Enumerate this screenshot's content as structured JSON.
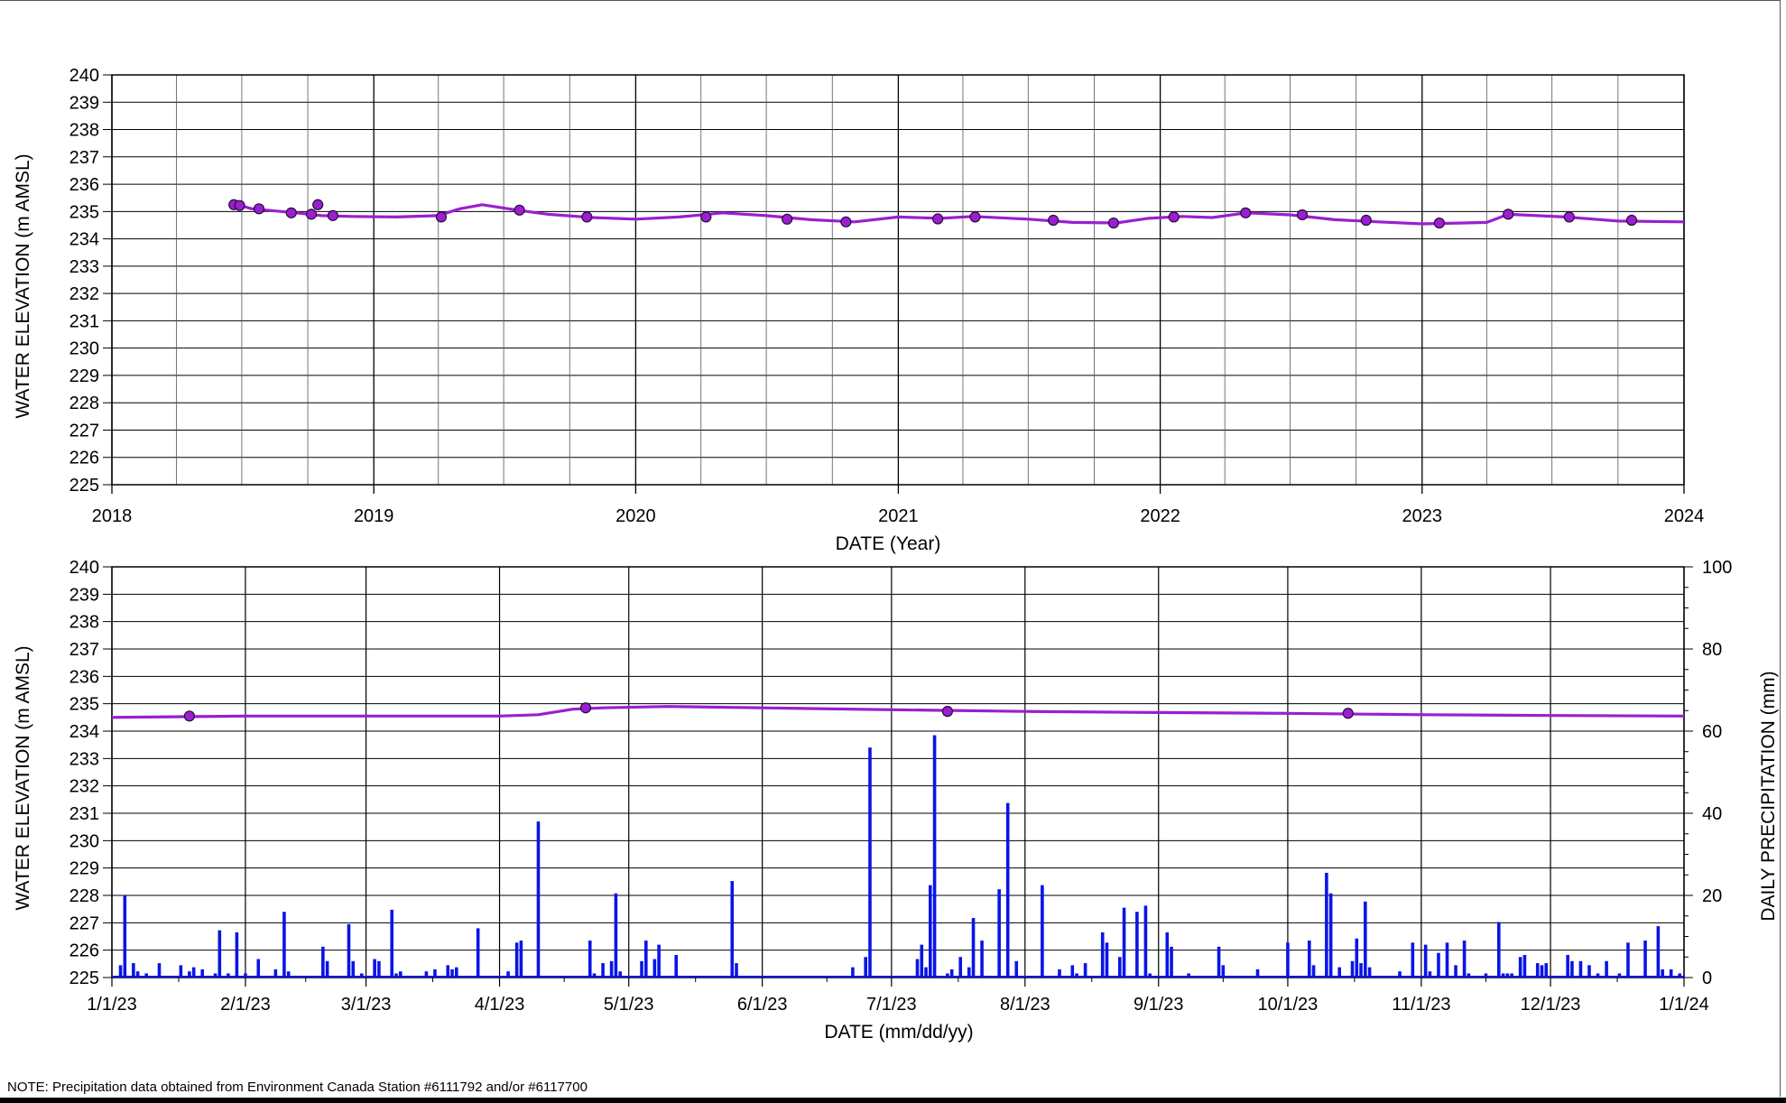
{
  "note": "NOTE: Precipitation data obtained from Environment Canada Station #6111792 and/or #6117700",
  "colors": {
    "water_line": "#9a1fd0",
    "marker": "#9a1fd0",
    "precip_bar": "#0a14e8",
    "grid": "#000000"
  },
  "chart_data": [
    {
      "type": "line",
      "ylabel": "WATER ELEVATION (m AMSL)",
      "xlabel": "DATE (Year)",
      "ylim": [
        225,
        240
      ],
      "xlim": [
        "2018-01-01",
        "2024-01-01"
      ],
      "x_ticks": [
        "2018",
        "2019",
        "2020",
        "2021",
        "2022",
        "2023",
        "2024"
      ],
      "y_ticks": [
        225,
        226,
        227,
        228,
        229,
        230,
        231,
        232,
        233,
        234,
        235,
        236,
        237,
        238,
        239,
        240
      ],
      "grid": true,
      "series": [
        {
          "kind": "line",
          "points": [
            [
              "2018-06-25",
              235.25
            ],
            [
              "2018-07-15",
              235.1
            ],
            [
              "2018-09-15",
              234.95
            ],
            [
              "2018-10-20",
              234.85
            ],
            [
              "2018-12-01",
              234.82
            ],
            [
              "2019-02-01",
              234.8
            ],
            [
              "2019-04-01",
              234.85
            ],
            [
              "2019-05-01",
              235.1
            ],
            [
              "2019-06-01",
              235.25
            ],
            [
              "2019-07-20",
              235.05
            ],
            [
              "2019-09-01",
              234.9
            ],
            [
              "2019-11-01",
              234.78
            ],
            [
              "2020-01-01",
              234.72
            ],
            [
              "2020-03-01",
              234.8
            ],
            [
              "2020-05-01",
              234.95
            ],
            [
              "2020-07-01",
              234.85
            ],
            [
              "2020-09-01",
              234.7
            ],
            [
              "2020-11-01",
              234.62
            ],
            [
              "2021-01-01",
              234.8
            ],
            [
              "2021-03-01",
              234.75
            ],
            [
              "2021-04-15",
              234.82
            ],
            [
              "2021-07-01",
              234.72
            ],
            [
              "2021-09-01",
              234.6
            ],
            [
              "2021-11-01",
              234.58
            ],
            [
              "2021-12-15",
              234.75
            ],
            [
              "2022-02-01",
              234.82
            ],
            [
              "2022-03-15",
              234.78
            ],
            [
              "2022-05-01",
              234.95
            ],
            [
              "2022-07-01",
              234.88
            ],
            [
              "2022-09-01",
              234.7
            ],
            [
              "2022-11-01",
              234.62
            ],
            [
              "2023-01-01",
              234.55
            ],
            [
              "2023-03-01",
              234.58
            ],
            [
              "2023-04-01",
              234.6
            ],
            [
              "2023-05-01",
              234.9
            ],
            [
              "2023-07-20",
              234.8
            ],
            [
              "2023-10-01",
              234.65
            ],
            [
              "2024-01-01",
              234.62
            ]
          ]
        },
        {
          "kind": "markers",
          "points": [
            [
              "2018-06-20",
              235.25
            ],
            [
              "2018-06-28",
              235.22
            ],
            [
              "2018-07-25",
              235.1
            ],
            [
              "2018-09-08",
              234.95
            ],
            [
              "2018-10-06",
              234.9
            ],
            [
              "2018-10-15",
              235.25
            ],
            [
              "2018-11-05",
              234.85
            ],
            [
              "2019-04-05",
              234.8
            ],
            [
              "2019-07-23",
              235.05
            ],
            [
              "2019-10-25",
              234.8
            ],
            [
              "2020-04-08",
              234.8
            ],
            [
              "2020-07-30",
              234.72
            ],
            [
              "2020-10-20",
              234.62
            ],
            [
              "2021-02-25",
              234.73
            ],
            [
              "2021-04-18",
              234.8
            ],
            [
              "2021-08-05",
              234.68
            ],
            [
              "2021-10-28",
              234.58
            ],
            [
              "2022-01-20",
              234.8
            ],
            [
              "2022-04-30",
              234.95
            ],
            [
              "2022-07-18",
              234.88
            ],
            [
              "2022-10-15",
              234.68
            ],
            [
              "2023-01-25",
              234.58
            ],
            [
              "2023-05-01",
              234.9
            ],
            [
              "2023-07-25",
              234.8
            ],
            [
              "2023-10-20",
              234.68
            ]
          ]
        }
      ]
    },
    {
      "type": "line",
      "ylabel": "WATER ELEVATION (m AMSL)",
      "y2label": "DAILY PRECIPITATION (mm)",
      "xlabel": "DATE (mm/dd/yy)",
      "ylim": [
        225,
        240
      ],
      "y2lim": [
        0,
        100
      ],
      "xlim": [
        "2023-01-01",
        "2024-01-01"
      ],
      "x_ticks": [
        "1/1/23",
        "2/1/23",
        "3/1/23",
        "4/1/23",
        "5/1/23",
        "6/1/23",
        "7/1/23",
        "8/1/23",
        "9/1/23",
        "10/1/23",
        "11/1/23",
        "12/1/23",
        "1/1/24"
      ],
      "y_ticks": [
        225,
        226,
        227,
        228,
        229,
        230,
        231,
        232,
        233,
        234,
        235,
        236,
        237,
        238,
        239,
        240
      ],
      "y2_ticks": [
        0,
        20,
        40,
        60,
        80,
        100
      ],
      "grid": true,
      "series": [
        {
          "kind": "line",
          "points": [
            [
              "2023-01-01",
              234.5
            ],
            [
              "2023-02-01",
              234.55
            ],
            [
              "2023-03-01",
              234.55
            ],
            [
              "2023-04-01",
              234.55
            ],
            [
              "2023-04-10",
              234.6
            ],
            [
              "2023-04-18",
              234.8
            ],
            [
              "2023-04-25",
              234.85
            ],
            [
              "2023-05-10",
              234.9
            ],
            [
              "2023-06-01",
              234.85
            ],
            [
              "2023-07-01",
              234.78
            ],
            [
              "2023-08-01",
              234.72
            ],
            [
              "2023-09-01",
              234.68
            ],
            [
              "2023-10-01",
              234.65
            ],
            [
              "2023-11-01",
              234.6
            ],
            [
              "2023-12-01",
              234.57
            ],
            [
              "2024-01-01",
              234.55
            ]
          ]
        },
        {
          "kind": "markers",
          "points": [
            [
              "2023-01-19",
              234.55
            ],
            [
              "2023-04-21",
              234.85
            ],
            [
              "2023-07-14",
              234.72
            ],
            [
              "2023-10-15",
              234.65
            ]
          ]
        },
        {
          "kind": "bars",
          "axis": "y2",
          "points": [
            [
              "2023-01-03",
              3
            ],
            [
              "2023-01-04",
              20
            ],
            [
              "2023-01-06",
              3.5
            ],
            [
              "2023-01-07",
              1.5
            ],
            [
              "2023-01-09",
              1
            ],
            [
              "2023-01-12",
              3.5
            ],
            [
              "2023-01-17",
              3
            ],
            [
              "2023-01-19",
              1.5
            ],
            [
              "2023-01-20",
              2.5
            ],
            [
              "2023-01-22",
              2
            ],
            [
              "2023-01-25",
              1
            ],
            [
              "2023-01-26",
              11.5
            ],
            [
              "2023-01-28",
              1
            ],
            [
              "2023-01-30",
              11
            ],
            [
              "2023-02-01",
              1
            ],
            [
              "2023-02-04",
              4.5
            ],
            [
              "2023-02-08",
              2
            ],
            [
              "2023-02-10",
              16
            ],
            [
              "2023-02-11",
              1.5
            ],
            [
              "2023-02-19",
              7.5
            ],
            [
              "2023-02-20",
              4
            ],
            [
              "2023-02-25",
              13
            ],
            [
              "2023-02-26",
              4
            ],
            [
              "2023-02-28",
              1
            ],
            [
              "2023-03-03",
              4.5
            ],
            [
              "2023-03-04",
              4
            ],
            [
              "2023-03-07",
              16.5
            ],
            [
              "2023-03-08",
              1
            ],
            [
              "2023-03-09",
              1.5
            ],
            [
              "2023-03-15",
              1.5
            ],
            [
              "2023-03-17",
              2
            ],
            [
              "2023-03-20",
              3
            ],
            [
              "2023-03-21",
              2
            ],
            [
              "2023-03-22",
              2.5
            ],
            [
              "2023-03-27",
              12
            ],
            [
              "2023-04-03",
              1.5
            ],
            [
              "2023-04-05",
              8.5
            ],
            [
              "2023-04-06",
              9
            ],
            [
              "2023-04-10",
              38
            ],
            [
              "2023-04-22",
              9
            ],
            [
              "2023-04-23",
              1
            ],
            [
              "2023-04-25",
              3.5
            ],
            [
              "2023-04-27",
              4
            ],
            [
              "2023-04-28",
              20.5
            ],
            [
              "2023-04-29",
              1.5
            ],
            [
              "2023-05-04",
              4
            ],
            [
              "2023-05-05",
              9
            ],
            [
              "2023-05-07",
              4.5
            ],
            [
              "2023-05-08",
              8
            ],
            [
              "2023-05-12",
              5.5
            ],
            [
              "2023-05-25",
              23.5
            ],
            [
              "2023-05-26",
              3.5
            ],
            [
              "2023-06-22",
              2.5
            ],
            [
              "2023-06-25",
              5
            ],
            [
              "2023-06-26",
              56
            ],
            [
              "2023-07-07",
              4.5
            ],
            [
              "2023-07-08",
              8
            ],
            [
              "2023-07-09",
              2.5
            ],
            [
              "2023-07-10",
              22.5
            ],
            [
              "2023-07-11",
              59
            ],
            [
              "2023-07-14",
              1
            ],
            [
              "2023-07-15",
              2
            ],
            [
              "2023-07-17",
              5
            ],
            [
              "2023-07-19",
              2.5
            ],
            [
              "2023-07-20",
              14.5
            ],
            [
              "2023-07-22",
              9
            ],
            [
              "2023-07-26",
              21.5
            ],
            [
              "2023-07-28",
              42.5
            ],
            [
              "2023-07-30",
              4
            ],
            [
              "2023-08-05",
              22.5
            ],
            [
              "2023-08-09",
              2
            ],
            [
              "2023-08-12",
              3
            ],
            [
              "2023-08-13",
              1
            ],
            [
              "2023-08-15",
              3.5
            ],
            [
              "2023-08-19",
              11
            ],
            [
              "2023-08-20",
              8.5
            ],
            [
              "2023-08-23",
              5
            ],
            [
              "2023-08-24",
              17
            ],
            [
              "2023-08-27",
              16
            ],
            [
              "2023-08-29",
              17.5
            ],
            [
              "2023-08-30",
              1
            ],
            [
              "2023-09-03",
              11
            ],
            [
              "2023-09-04",
              7.5
            ],
            [
              "2023-09-08",
              1
            ],
            [
              "2023-09-15",
              7.5
            ],
            [
              "2023-09-16",
              3
            ],
            [
              "2023-09-24",
              2
            ],
            [
              "2023-10-01",
              8.5
            ],
            [
              "2023-10-06",
              9
            ],
            [
              "2023-10-07",
              3
            ],
            [
              "2023-10-10",
              25.5
            ],
            [
              "2023-10-11",
              20.5
            ],
            [
              "2023-10-13",
              2.5
            ],
            [
              "2023-10-16",
              4
            ],
            [
              "2023-10-17",
              9.5
            ],
            [
              "2023-10-18",
              3.5
            ],
            [
              "2023-10-19",
              18.5
            ],
            [
              "2023-10-20",
              2.5
            ],
            [
              "2023-10-27",
              1.5
            ],
            [
              "2023-10-30",
              8.5
            ],
            [
              "2023-11-02",
              8
            ],
            [
              "2023-11-03",
              1.5
            ],
            [
              "2023-11-05",
              6
            ],
            [
              "2023-11-07",
              8.5
            ],
            [
              "2023-11-09",
              3
            ],
            [
              "2023-11-11",
              9
            ],
            [
              "2023-11-12",
              1
            ],
            [
              "2023-11-16",
              1
            ],
            [
              "2023-11-19",
              13.5
            ],
            [
              "2023-11-20",
              1
            ],
            [
              "2023-11-21",
              1
            ],
            [
              "2023-11-22",
              1
            ],
            [
              "2023-11-24",
              5
            ],
            [
              "2023-11-25",
              5.5
            ],
            [
              "2023-11-28",
              3.5
            ],
            [
              "2023-11-29",
              3
            ],
            [
              "2023-11-30",
              3.5
            ],
            [
              "2023-12-05",
              5.5
            ],
            [
              "2023-12-06",
              4
            ],
            [
              "2023-12-08",
              4
            ],
            [
              "2023-12-10",
              3
            ],
            [
              "2023-12-12",
              1
            ],
            [
              "2023-12-14",
              4
            ],
            [
              "2023-12-17",
              1
            ],
            [
              "2023-12-19",
              8.5
            ],
            [
              "2023-12-23",
              9
            ],
            [
              "2023-12-26",
              12.5
            ],
            [
              "2023-12-27",
              2
            ],
            [
              "2023-12-29",
              2
            ],
            [
              "2023-12-31",
              1
            ]
          ]
        }
      ]
    }
  ]
}
